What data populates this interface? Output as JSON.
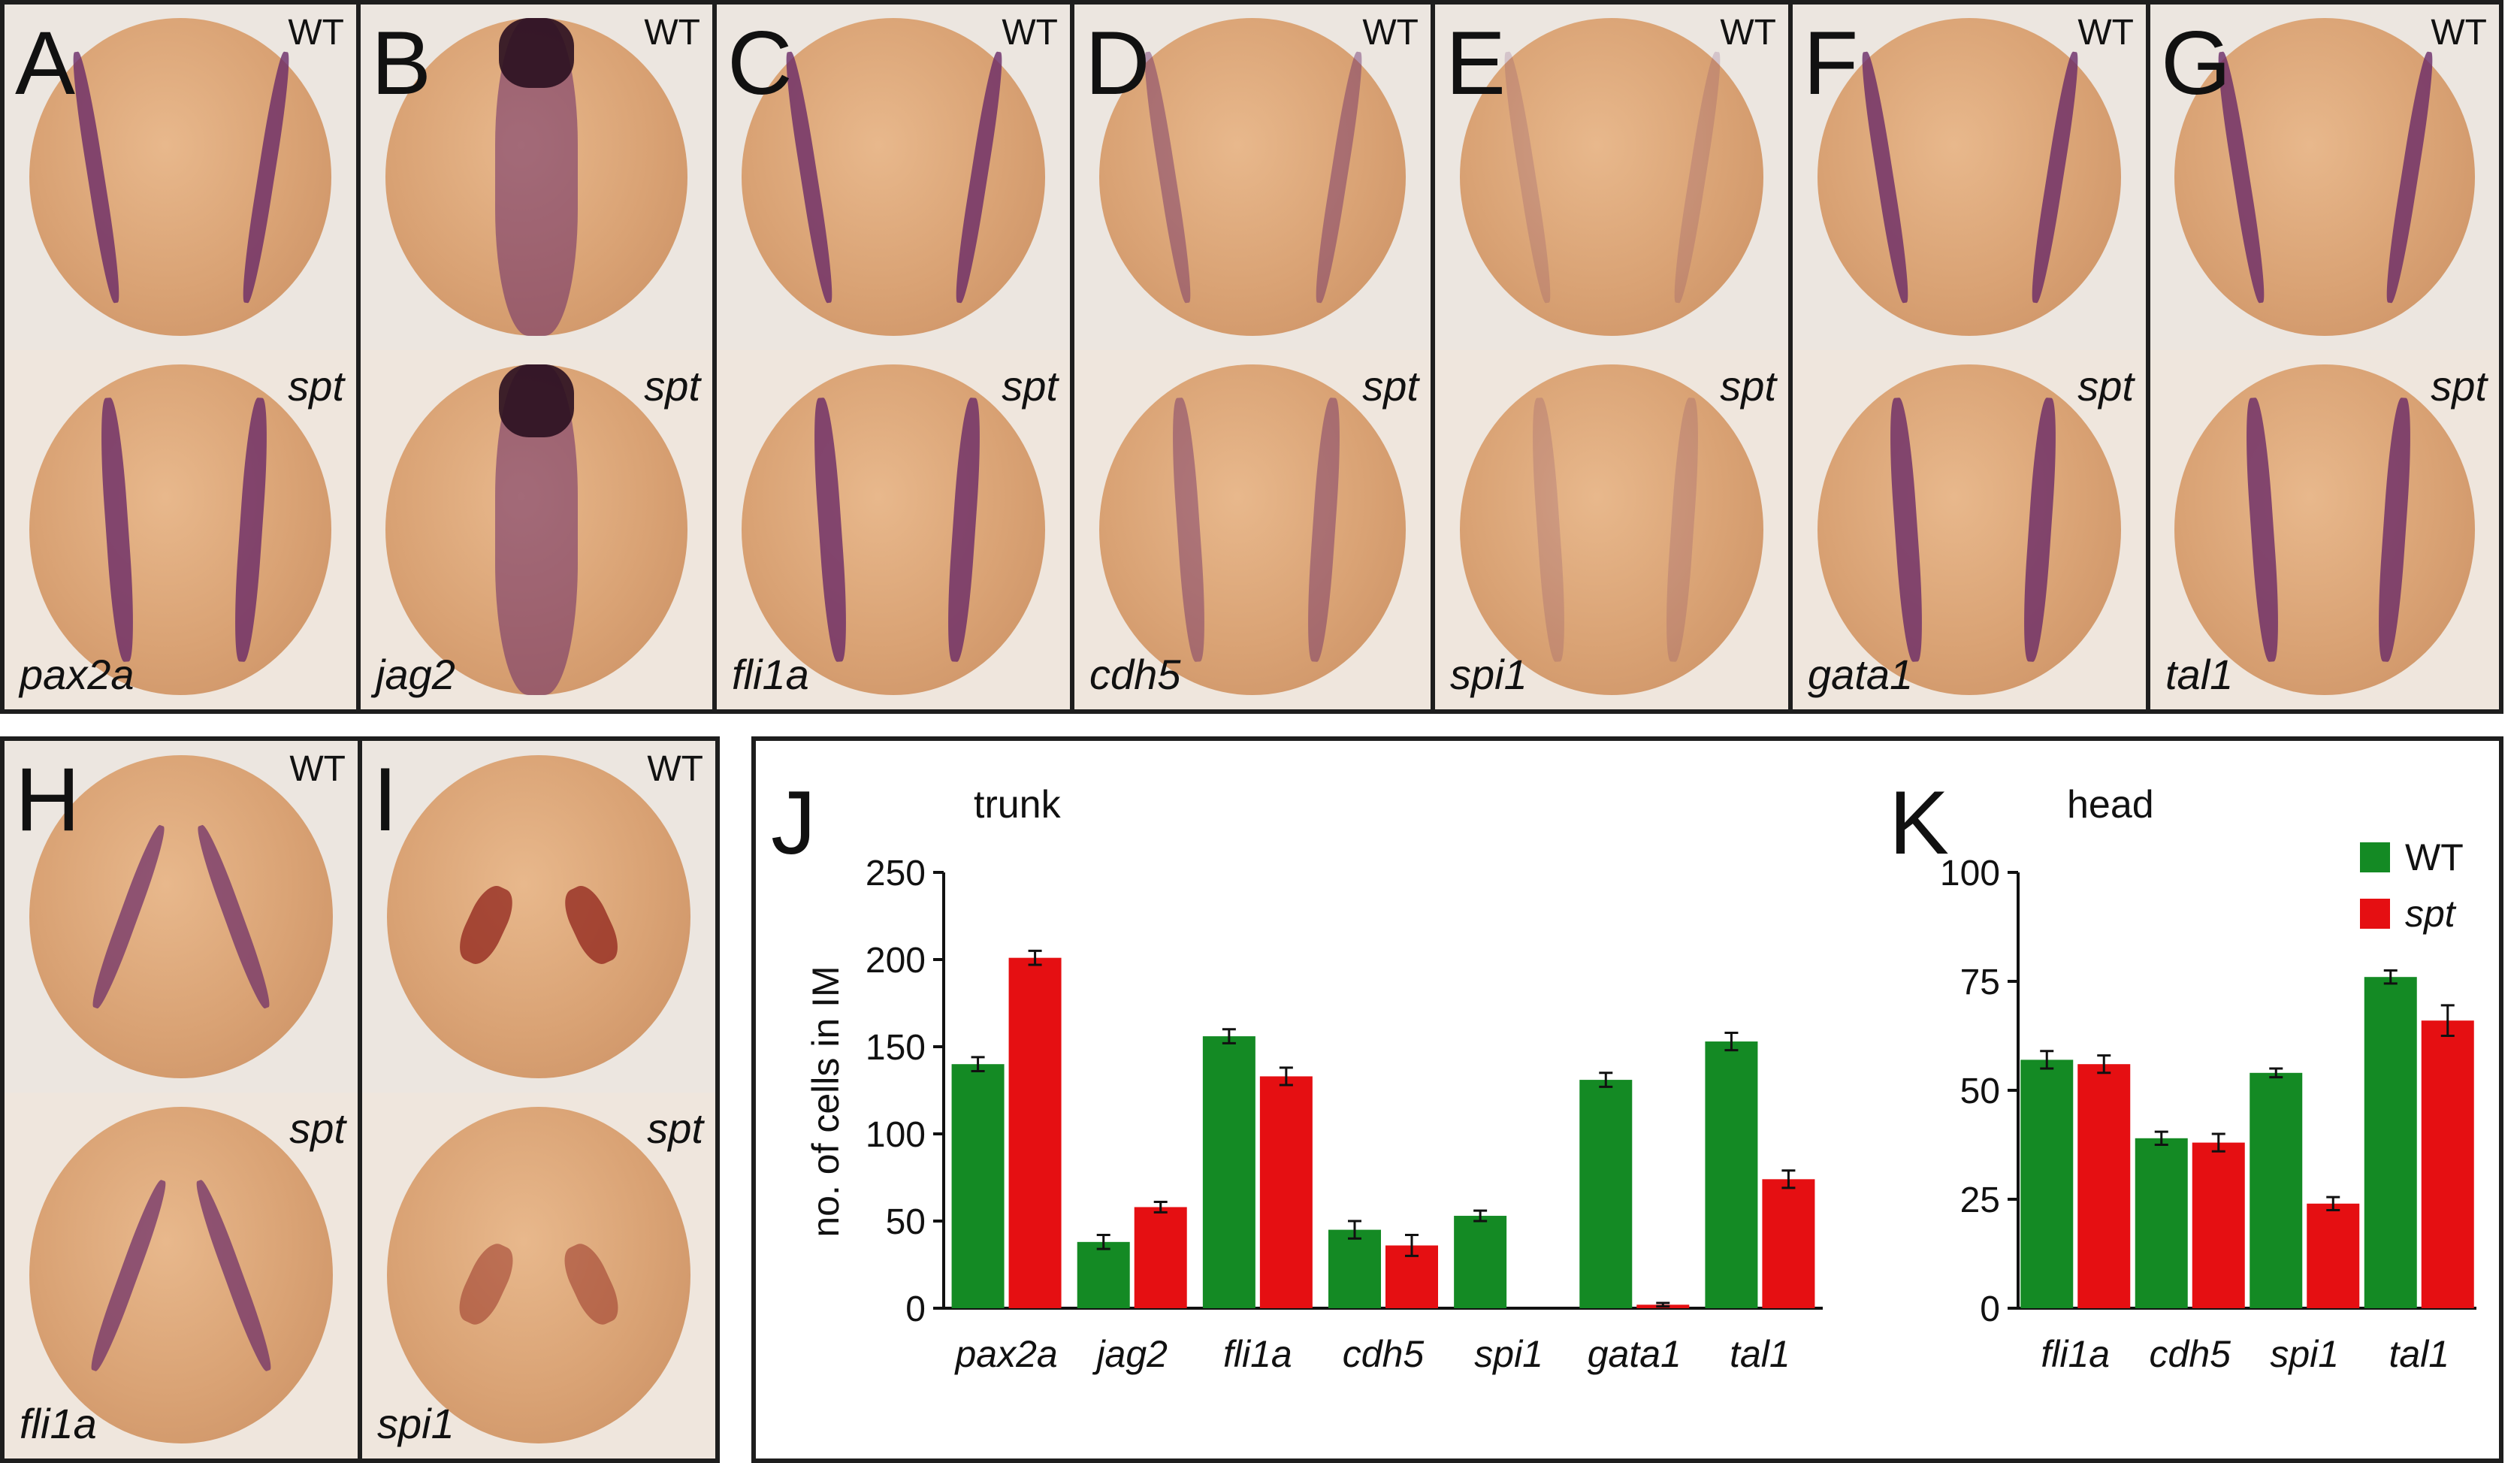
{
  "top_row": [
    {
      "letter": "A",
      "upper": "WT",
      "lower": "spt",
      "gene": "pax2a"
    },
    {
      "letter": "B",
      "upper": "WT",
      "lower": "spt",
      "gene": "jag2"
    },
    {
      "letter": "C",
      "upper": "WT",
      "lower": "spt",
      "gene": "fli1a"
    },
    {
      "letter": "D",
      "upper": "WT",
      "lower": "spt",
      "gene": "cdh5"
    },
    {
      "letter": "E",
      "upper": "WT",
      "lower": "spt",
      "gene": "spi1"
    },
    {
      "letter": "F",
      "upper": "WT",
      "lower": "spt",
      "gene": "gata1"
    },
    {
      "letter": "G",
      "upper": "WT",
      "lower": "spt",
      "gene": "tal1"
    }
  ],
  "bottom_row": [
    {
      "letter": "H",
      "upper": "WT",
      "lower": "spt",
      "gene": "fli1a"
    },
    {
      "letter": "I",
      "upper": "WT",
      "lower": "spt",
      "gene": "spi1"
    }
  ],
  "colors": {
    "wt": "#148a24",
    "spt": "#e50f12",
    "embryo": "#d9a274",
    "stain": "#6a2a68"
  },
  "chart_data": [
    {
      "letter": "J",
      "type": "bar",
      "title": "trunk",
      "ylabel": "no. of cells in IM",
      "ylim": [
        0,
        250
      ],
      "yticks": [
        "0",
        "50",
        "100",
        "150",
        "200",
        "250"
      ],
      "categories": [
        "pax2a",
        "jag2",
        "fli1a",
        "cdh5",
        "spi1",
        "gata1",
        "tal1"
      ],
      "series": [
        {
          "name": "WT",
          "values": [
            140,
            38,
            156,
            45,
            53,
            131,
            153
          ],
          "errors": [
            4,
            4,
            4,
            5,
            3,
            4,
            5
          ]
        },
        {
          "name": "spt",
          "values": [
            201,
            58,
            133,
            36,
            0,
            2,
            74
          ],
          "errors": [
            4,
            3,
            5,
            6,
            0,
            1,
            5
          ]
        }
      ]
    },
    {
      "letter": "K",
      "type": "bar",
      "title": "head",
      "ylim": [
        0,
        100
      ],
      "yticks": [
        "0",
        "25",
        "50",
        "75",
        "100"
      ],
      "categories": [
        "fli1a",
        "cdh5",
        "spi1",
        "tal1"
      ],
      "legend": {
        "position": "top-right",
        "entries": [
          "WT",
          "spt"
        ]
      },
      "series": [
        {
          "name": "WT",
          "values": [
            57,
            39,
            54,
            76
          ],
          "errors": [
            2,
            1.5,
            1,
            1.5
          ]
        },
        {
          "name": "spt",
          "values": [
            56,
            38,
            24,
            66
          ],
          "errors": [
            2,
            2,
            1.5,
            3.5
          ]
        }
      ]
    }
  ]
}
